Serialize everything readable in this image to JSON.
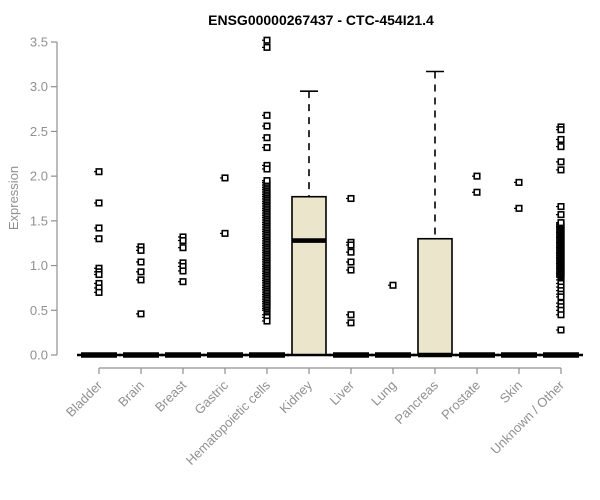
{
  "chart_data": {
    "type": "boxplot",
    "title": "ENSG00000267437 - CTC-454I21.4",
    "ylabel": "Expression",
    "xlabel": "",
    "ylim": [
      0,
      3.5
    ],
    "yticks": [
      0,
      0.5,
      1.0,
      1.5,
      2.0,
      2.5,
      3.0,
      3.5
    ],
    "grid": false,
    "legend": "none",
    "colors": {
      "box_fill": "#EBE5CC",
      "box_stroke": "#000000",
      "median": "#000000",
      "point": "#000000",
      "axis": "#909090",
      "title": "#000000"
    },
    "categories": [
      "Bladder",
      "Brain",
      "Breast",
      "Gastric",
      "Hematopoietic cells",
      "Kidney",
      "Liver",
      "Lung",
      "Pancreas",
      "Prostate",
      "Skin",
      "Unknown / Other"
    ],
    "groups": [
      {
        "label": "Bladder",
        "box": {
          "q1": 0,
          "median": 0,
          "q3": 0,
          "whisker_low": 0,
          "whisker_high": 0
        },
        "points": [
          2.05,
          1.7,
          1.42,
          1.3,
          0.97,
          0.93,
          0.9,
          0.8,
          0.75,
          0.7
        ]
      },
      {
        "label": "Brain",
        "box": {
          "q1": 0,
          "median": 0,
          "q3": 0,
          "whisker_low": 0,
          "whisker_high": 0
        },
        "points": [
          1.21,
          1.17,
          1.04,
          0.93,
          0.84,
          0.46
        ]
      },
      {
        "label": "Breast",
        "box": {
          "q1": 0,
          "median": 0,
          "q3": 0,
          "whisker_low": 0,
          "whisker_high": 0
        },
        "points": [
          1.32,
          1.28,
          1.2,
          1.03,
          0.99,
          0.94,
          0.82
        ]
      },
      {
        "label": "Gastric",
        "box": {
          "q1": 0,
          "median": 0,
          "q3": 0,
          "whisker_low": 0,
          "whisker_high": 0
        },
        "points": [
          1.98,
          1.36
        ]
      },
      {
        "label": "Hematopoietic cells",
        "box": {
          "q1": 0,
          "median": 0,
          "q3": 0,
          "whisker_low": 0,
          "whisker_high": 0
        },
        "points": [
          3.52,
          3.44,
          2.68,
          2.56,
          2.43,
          2.32,
          2.12,
          2.08,
          0.45,
          0.42,
          0.38
        ],
        "points_dense": {
          "min": 0.5,
          "max": 1.95,
          "count": 75
        }
      },
      {
        "label": "Kidney",
        "box": {
          "q1": 0,
          "median": 1.28,
          "q3": 1.77,
          "whisker_low": 0,
          "whisker_high": 2.95
        },
        "points": []
      },
      {
        "label": "Liver",
        "box": {
          "q1": 0,
          "median": 0,
          "q3": 0,
          "whisker_low": 0,
          "whisker_high": 0
        },
        "points": [
          1.75,
          1.26,
          1.23,
          1.15,
          1.04,
          0.95,
          0.45,
          0.36
        ]
      },
      {
        "label": "Lung",
        "box": {
          "q1": 0,
          "median": 0,
          "q3": 0,
          "whisker_low": 0,
          "whisker_high": 0
        },
        "points": [
          0.78
        ]
      },
      {
        "label": "Pancreas",
        "box": {
          "q1": 0,
          "median": 0,
          "q3": 1.3,
          "whisker_low": 0,
          "whisker_high": 3.17
        },
        "points": []
      },
      {
        "label": "Prostate",
        "box": {
          "q1": 0,
          "median": 0,
          "q3": 0,
          "whisker_low": 0,
          "whisker_high": 0
        },
        "points": [
          2.0,
          1.82
        ]
      },
      {
        "label": "Skin",
        "box": {
          "q1": 0,
          "median": 0,
          "q3": 0,
          "whisker_low": 0,
          "whisker_high": 0
        },
        "points": [
          1.93,
          1.64
        ]
      },
      {
        "label": "Unknown / Other",
        "box": {
          "q1": 0,
          "median": 0,
          "q3": 0,
          "whisker_low": 0,
          "whisker_high": 0
        },
        "points": [
          2.55,
          2.52,
          2.41,
          2.33,
          2.16,
          2.07,
          1.66,
          1.57,
          0.84,
          0.8,
          0.76,
          0.72,
          0.68,
          0.65,
          0.58,
          0.54,
          0.5,
          0.45,
          0.28
        ],
        "points_dense": {
          "min": 0.87,
          "max": 1.48,
          "count": 45
        }
      }
    ]
  }
}
